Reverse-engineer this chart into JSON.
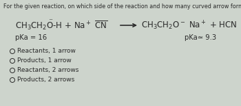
{
  "title": "For the given reaction, on which side of the reaction and how many curved arrow formalisms can be drawn?",
  "pka_left": "pKa = 16",
  "pka_right": "pKa≃ 9.3",
  "options": [
    "Reactants, 1 arrow",
    "Products, 1 arrow",
    "Reactants, 2 arrows",
    "Products, 2 arrows"
  ],
  "bg_color": "#cdd4cc",
  "text_color": "#2a2a2a",
  "title_fontsize": 5.8,
  "reaction_fontsize": 8.5,
  "pka_fontsize": 7.2,
  "option_fontsize": 6.5
}
